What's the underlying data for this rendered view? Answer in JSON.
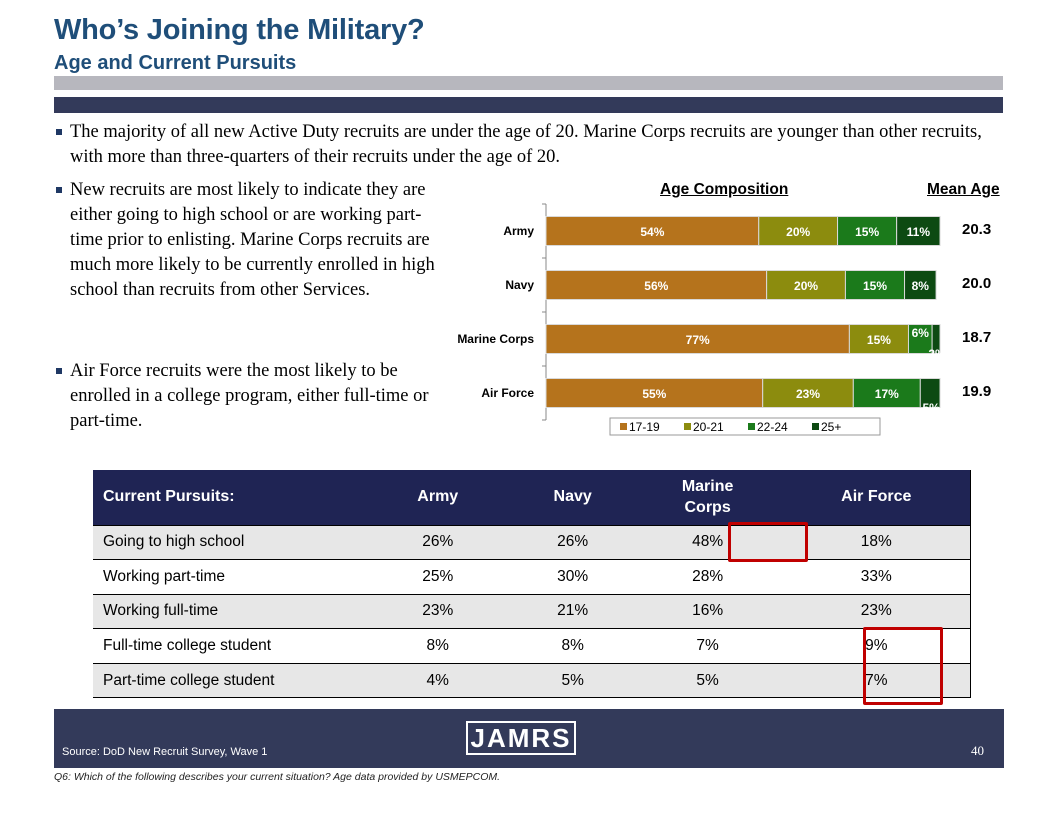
{
  "header": {
    "title": "Who’s Joining the Military?",
    "subtitle": "Age and Current Pursuits"
  },
  "bullets": [
    "The majority of all new Active Duty recruits are under the age of 20.  Marine Corps recruits are younger than other recruits, with more than three-quarters of their recruits under the age of 20.",
    "New recruits are most likely to indicate they are either going to high school or are working part-time prior to enlisting.  Marine Corps recruits are much more likely to be currently enrolled in high school than recruits from other Services.",
    "Air Force recruits were the most likely to be enrolled in a college program, either full-time or part-time."
  ],
  "chart_headings": {
    "age": "Age Composition",
    "mean": "Mean Age"
  },
  "chart_data": {
    "type": "bar",
    "orientation": "horizontal",
    "stacked": true,
    "title": "Age Composition",
    "categories": [
      "Army",
      "Navy",
      "Marine Corps",
      "Air Force"
    ],
    "series": [
      {
        "name": "17-19",
        "color": "#b5731c",
        "values": [
          54,
          56,
          77,
          55
        ],
        "labels": [
          "54%",
          "56%",
          "77%",
          "55%"
        ]
      },
      {
        "name": "20-21",
        "color": "#8c8c0e",
        "values": [
          20,
          20,
          15,
          23
        ],
        "labels": [
          "20%",
          "20%",
          "15%",
          "23%"
        ]
      },
      {
        "name": "22-24",
        "color": "#1b7a1b",
        "values": [
          15,
          15,
          6,
          17
        ],
        "labels": [
          "15%",
          "15%",
          "6%",
          "17%"
        ]
      },
      {
        "name": "25+",
        "color": "#0d4a12",
        "values": [
          11,
          8,
          2,
          5
        ],
        "labels": [
          "11%",
          "8%",
          "2%",
          "5%"
        ]
      }
    ],
    "xlim": [
      0,
      100
    ],
    "legend": "bottom",
    "mean_age_label": "Mean Age",
    "mean_age": [
      "20.3",
      "20.0",
      "18.7",
      "19.9"
    ]
  },
  "table": {
    "headers": [
      "Current Pursuits:",
      "Army",
      "Navy",
      "Marine Corps",
      "Air Force"
    ],
    "rows": [
      [
        "Going to high school",
        "26%",
        "26%",
        "48%",
        "18%"
      ],
      [
        "Working part-time",
        "25%",
        "30%",
        "28%",
        "33%"
      ],
      [
        "Working full-time",
        "23%",
        "21%",
        "16%",
        "23%"
      ],
      [
        "Full-time college student",
        "8%",
        "8%",
        "7%",
        "9%"
      ],
      [
        "Part-time college student",
        "4%",
        "5%",
        "5%",
        "7%"
      ]
    ]
  },
  "colors": {
    "title": "#1f4e79",
    "navy_band": "#333a5a",
    "table_header": "#1f2454",
    "highlight": "#c00000"
  },
  "footer": {
    "source": "Source:  DoD New Recruit Survey, Wave 1",
    "logo": "JAMRS",
    "page_number": "40",
    "note": "Q6:  Which of the following describes your current situation? Age data provided by USMEPCOM."
  }
}
